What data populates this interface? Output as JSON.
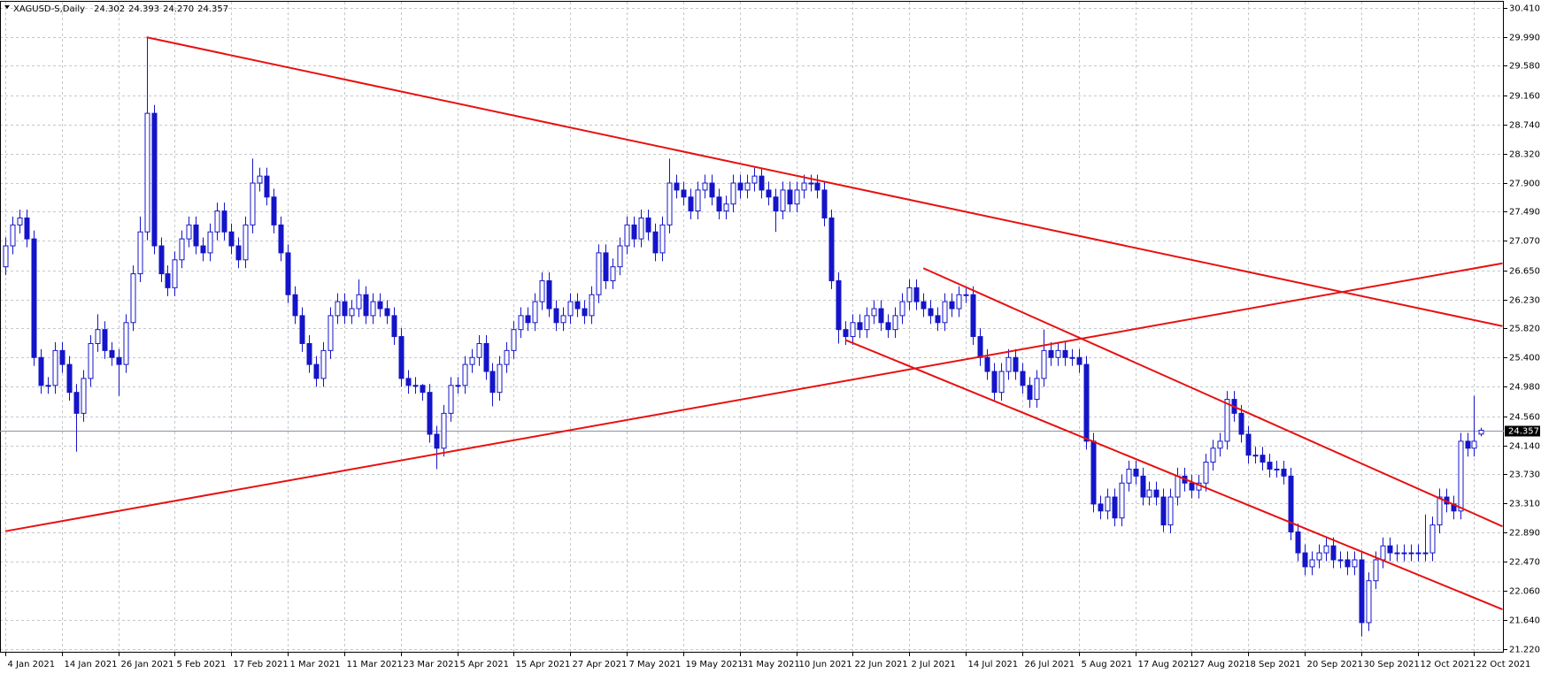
{
  "chart_data": {
    "type": "candlestick",
    "title": "XAGUSD-S,Daily",
    "quote": [
      24.302,
      24.393,
      {
        "value": 24.27,
        "label": "24.270"
      },
      24.357
    ],
    "color": "#1414c8",
    "open": [
      26.7,
      27.0,
      27.3,
      27.4,
      27.1,
      25.4,
      25.0,
      25.0,
      25.5,
      25.3,
      24.9,
      24.6,
      25.1,
      25.6,
      25.8,
      25.5,
      25.4,
      25.3,
      25.9,
      26.6,
      27.2,
      28.9,
      27.0,
      26.6,
      26.4,
      26.8,
      27.1,
      27.3,
      27.0,
      26.9,
      27.2,
      27.5,
      27.2,
      27.0,
      26.8,
      27.3,
      27.9,
      28.0,
      27.7,
      27.3,
      26.9,
      26.3,
      26.0,
      25.6,
      25.3,
      25.1,
      25.5,
      26.0,
      26.2,
      26.0,
      26.1,
      26.3,
      26.0,
      26.2,
      26.1,
      26.0,
      25.7,
      25.1,
      25.0,
      25.0,
      24.9,
      24.3,
      24.1,
      24.6,
      25.0,
      25.0,
      25.3,
      25.4,
      25.6,
      25.2,
      24.9,
      25.3,
      25.5,
      25.8,
      26.0,
      25.9,
      26.2,
      26.5,
      26.1,
      25.9,
      26.0,
      26.2,
      26.1,
      26.0,
      26.3,
      26.9,
      26.5,
      26.7,
      27.0,
      27.3,
      27.1,
      27.4,
      27.2,
      26.9,
      27.3,
      27.9,
      27.8,
      27.7,
      27.5,
      27.8,
      27.9,
      27.7,
      27.5,
      27.6,
      27.9,
      27.8,
      27.9,
      28.0,
      27.8,
      27.7,
      27.5,
      27.8,
      27.6,
      27.8,
      27.9,
      27.9,
      27.8,
      27.4,
      26.5,
      25.8,
      25.7,
      25.9,
      25.8,
      26.0,
      26.1,
      25.9,
      25.8,
      26.0,
      26.2,
      26.4,
      26.2,
      26.1,
      26.0,
      25.9,
      26.2,
      26.1,
      26.3,
      26.3,
      25.7,
      25.4,
      25.2,
      24.9,
      25.2,
      25.4,
      25.2,
      25.0,
      24.8,
      25.1,
      25.5,
      25.4,
      25.5,
      25.4,
      25.4,
      25.3,
      24.2,
      23.3,
      23.2,
      23.4,
      23.1,
      23.6,
      23.8,
      23.7,
      23.4,
      23.5,
      23.4,
      23.0,
      23.4,
      23.7,
      23.6,
      23.5,
      23.6,
      23.9,
      24.1,
      24.2,
      24.8,
      24.6,
      24.3,
      24.0,
      24.0,
      23.9,
      23.8,
      23.8,
      23.7,
      22.9,
      22.6,
      22.4,
      22.5,
      22.6,
      22.7,
      22.5,
      22.5,
      22.4,
      22.5,
      21.6,
      22.2,
      22.5,
      22.7,
      22.6,
      22.6,
      22.6,
      22.6,
      22.6,
      22.6,
      23.0,
      23.4,
      23.3,
      23.2,
      24.2,
      24.1,
      24.302
    ],
    "high": [
      27.12,
      27.42,
      27.52,
      27.52,
      27.22,
      25.52,
      25.12,
      25.62,
      25.62,
      25.42,
      25.02,
      25.22,
      25.72,
      26.02,
      25.92,
      25.62,
      25.52,
      26.02,
      26.72,
      27.42,
      29.99,
      29.02,
      27.12,
      26.72,
      26.92,
      27.22,
      27.42,
      27.42,
      27.12,
      27.32,
      27.62,
      27.62,
      27.32,
      27.12,
      27.42,
      28.25,
      28.12,
      28.12,
      27.82,
      27.42,
      27.02,
      26.42,
      26.12,
      25.72,
      25.42,
      25.62,
      26.12,
      26.32,
      26.32,
      26.22,
      26.52,
      26.42,
      26.32,
      26.32,
      26.22,
      26.12,
      25.82,
      25.22,
      25.12,
      25.02,
      25.02,
      24.42,
      24.72,
      25.12,
      25.12,
      25.42,
      25.52,
      25.72,
      25.72,
      25.32,
      25.42,
      25.62,
      25.92,
      26.12,
      26.12,
      26.32,
      26.62,
      26.62,
      26.22,
      26.12,
      26.32,
      26.32,
      26.22,
      26.42,
      27.02,
      27.02,
      26.82,
      27.12,
      27.42,
      27.42,
      27.52,
      27.52,
      27.32,
      27.42,
      28.25,
      28.02,
      27.92,
      27.82,
      27.92,
      28.02,
      28.02,
      27.82,
      27.72,
      28.02,
      28.02,
      28.02,
      28.12,
      28.12,
      27.92,
      27.82,
      27.92,
      27.92,
      27.92,
      28.02,
      28.02,
      28.02,
      27.92,
      27.52,
      26.62,
      25.92,
      26.02,
      26.02,
      26.12,
      26.22,
      26.22,
      26.02,
      26.12,
      26.32,
      26.52,
      26.52,
      26.32,
      26.22,
      26.12,
      26.32,
      26.32,
      26.42,
      26.42,
      26.42,
      25.82,
      25.52,
      25.32,
      25.32,
      25.52,
      25.52,
      25.32,
      25.12,
      25.22,
      25.8,
      25.62,
      25.62,
      25.62,
      25.52,
      25.52,
      25.42,
      24.32,
      23.42,
      23.52,
      23.52,
      23.72,
      23.92,
      23.92,
      23.82,
      23.62,
      23.62,
      23.52,
      23.52,
      23.82,
      23.82,
      23.72,
      23.72,
      24.02,
      24.22,
      24.32,
      24.92,
      24.92,
      24.72,
      24.42,
      24.12,
      24.12,
      24.02,
      23.92,
      23.92,
      23.82,
      23.02,
      22.72,
      22.62,
      22.72,
      22.82,
      22.82,
      22.62,
      22.62,
      22.62,
      22.62,
      22.32,
      22.62,
      22.82,
      22.82,
      22.72,
      22.72,
      22.72,
      22.72,
      23.15,
      23.12,
      23.52,
      23.52,
      23.42,
      24.32,
      24.32,
      24.85,
      24.393
    ],
    "low": [
      26.58,
      26.88,
      27.18,
      26.98,
      25.28,
      24.88,
      24.88,
      24.88,
      25.18,
      24.78,
      24.05,
      24.48,
      24.98,
      25.48,
      25.38,
      25.28,
      24.85,
      25.18,
      25.78,
      26.48,
      27.08,
      26.88,
      26.48,
      26.28,
      26.28,
      26.68,
      26.98,
      26.88,
      26.78,
      26.78,
      27.08,
      27.08,
      26.88,
      26.68,
      26.68,
      27.18,
      27.78,
      27.58,
      27.18,
      26.78,
      26.18,
      25.88,
      25.48,
      25.18,
      24.98,
      24.98,
      25.38,
      25.88,
      25.88,
      25.88,
      25.98,
      25.88,
      25.88,
      25.98,
      25.88,
      25.58,
      24.98,
      24.88,
      24.88,
      24.78,
      24.18,
      23.8,
      23.98,
      24.48,
      24.88,
      24.88,
      25.18,
      25.28,
      25.08,
      24.7,
      24.78,
      25.18,
      25.38,
      25.68,
      25.78,
      25.78,
      26.08,
      25.98,
      25.78,
      25.78,
      25.88,
      25.98,
      25.88,
      25.88,
      26.18,
      26.38,
      26.38,
      26.58,
      26.88,
      26.98,
      26.98,
      27.08,
      26.78,
      26.78,
      27.18,
      27.68,
      27.58,
      27.38,
      27.38,
      27.68,
      27.58,
      27.38,
      27.38,
      27.48,
      27.68,
      27.68,
      27.78,
      27.68,
      27.58,
      27.2,
      27.38,
      27.48,
      27.48,
      27.68,
      27.78,
      27.68,
      27.28,
      26.38,
      25.6,
      25.58,
      25.58,
      25.68,
      25.68,
      25.88,
      25.78,
      25.68,
      25.68,
      25.88,
      26.08,
      26.08,
      25.98,
      25.88,
      25.78,
      25.78,
      25.98,
      25.98,
      26.18,
      25.58,
      25.28,
      25.08,
      24.78,
      24.78,
      25.08,
      25.08,
      24.88,
      24.68,
      24.68,
      24.98,
      25.28,
      25.28,
      25.28,
      25.28,
      25.18,
      24.08,
      23.18,
      23.08,
      23.08,
      22.98,
      22.98,
      23.48,
      23.58,
      23.28,
      23.28,
      23.28,
      22.9,
      22.88,
      23.28,
      23.48,
      23.38,
      23.38,
      23.48,
      23.78,
      23.98,
      24.08,
      24.48,
      24.18,
      23.88,
      23.88,
      23.78,
      23.68,
      23.68,
      23.58,
      22.78,
      22.48,
      22.28,
      22.28,
      22.38,
      22.48,
      22.38,
      22.38,
      22.28,
      22.28,
      21.4,
      21.48,
      22.08,
      22.38,
      22.48,
      22.48,
      22.48,
      22.48,
      22.48,
      22.48,
      22.48,
      22.88,
      23.18,
      23.08,
      23.08,
      23.98,
      23.98,
      24.27
    ],
    "close": [
      27.0,
      27.3,
      27.4,
      27.1,
      25.4,
      25.0,
      25.0,
      25.5,
      25.3,
      24.9,
      24.6,
      25.1,
      25.6,
      25.8,
      25.5,
      25.4,
      25.3,
      25.9,
      26.6,
      27.2,
      28.9,
      27.0,
      26.6,
      26.4,
      26.8,
      27.1,
      27.3,
      27.0,
      26.9,
      27.2,
      27.5,
      27.2,
      27.0,
      26.8,
      27.3,
      27.9,
      28.0,
      27.7,
      27.3,
      26.9,
      26.3,
      26.0,
      25.6,
      25.3,
      25.1,
      25.5,
      26.0,
      26.2,
      26.0,
      26.1,
      26.3,
      26.0,
      26.2,
      26.1,
      26.0,
      25.7,
      25.1,
      25.0,
      25.0,
      24.9,
      24.3,
      24.1,
      24.6,
      25.0,
      25.0,
      25.3,
      25.4,
      25.6,
      25.2,
      24.9,
      25.3,
      25.5,
      25.8,
      26.0,
      25.9,
      26.2,
      26.5,
      26.1,
      25.9,
      26.0,
      26.2,
      26.1,
      26.0,
      26.3,
      26.9,
      26.5,
      26.7,
      27.0,
      27.3,
      27.1,
      27.4,
      27.2,
      26.9,
      27.3,
      27.9,
      27.8,
      27.7,
      27.5,
      27.8,
      27.9,
      27.7,
      27.5,
      27.6,
      27.9,
      27.8,
      27.9,
      28.0,
      27.8,
      27.7,
      27.5,
      27.8,
      27.6,
      27.8,
      27.9,
      27.9,
      27.8,
      27.4,
      26.5,
      25.8,
      25.7,
      25.9,
      25.8,
      26.0,
      26.1,
      25.9,
      25.8,
      26.0,
      26.2,
      26.4,
      26.2,
      26.1,
      26.0,
      25.9,
      26.2,
      26.1,
      26.3,
      26.3,
      25.7,
      25.4,
      25.2,
      24.9,
      25.2,
      25.4,
      25.2,
      25.0,
      24.8,
      25.1,
      25.5,
      25.4,
      25.5,
      25.4,
      25.4,
      25.3,
      24.2,
      23.3,
      23.2,
      23.4,
      23.1,
      23.6,
      23.8,
      23.7,
      23.4,
      23.5,
      23.4,
      23.0,
      23.4,
      23.7,
      23.6,
      23.5,
      23.6,
      23.9,
      24.1,
      24.2,
      24.8,
      24.6,
      24.3,
      24.0,
      24.0,
      23.9,
      23.8,
      23.8,
      23.7,
      22.9,
      22.6,
      22.4,
      22.5,
      22.6,
      22.7,
      22.5,
      22.5,
      22.4,
      22.5,
      21.6,
      22.2,
      22.5,
      22.7,
      22.6,
      22.6,
      22.6,
      22.6,
      22.6,
      22.6,
      23.0,
      23.4,
      23.3,
      23.2,
      24.2,
      24.1,
      24.2,
      24.357
    ],
    "trendlines": [
      {
        "color": "#e81010",
        "x": [
          20,
          212
        ],
        "y": [
          29.99,
          25.85
        ]
      },
      {
        "color": "#e81010",
        "x": [
          0,
          212
        ],
        "y": [
          22.91,
          26.75
        ]
      },
      {
        "color": "#e81010",
        "x": [
          130,
          212
        ],
        "y": [
          26.68,
          22.98
        ]
      },
      {
        "color": "#e81010",
        "x": [
          119,
          212
        ],
        "y": [
          25.65,
          21.79
        ]
      }
    ],
    "xlim": [
      -0.75,
      212.2
    ],
    "ylim": [
      21.22,
      30.41
    ],
    "grid": true,
    "yticks": [
      {
        "value": 30.41,
        "label": "30.410"
      },
      {
        "value": 29.99,
        "label": "29.990"
      },
      {
        "value": 29.58,
        "label": "29.580"
      },
      {
        "value": 29.16,
        "label": "29.160"
      },
      {
        "value": 28.74,
        "label": "28.740"
      },
      {
        "value": 28.32,
        "label": "28.320"
      },
      {
        "value": 27.9,
        "label": "27.900"
      },
      {
        "value": 27.49,
        "label": "27.490"
      },
      {
        "value": 27.07,
        "label": "27.070"
      },
      {
        "value": 26.65,
        "label": "26.650"
      },
      {
        "value": 26.23,
        "label": "26.230"
      },
      {
        "value": 25.82,
        "label": "25.820"
      },
      {
        "value": 25.4,
        "label": "25.400"
      },
      {
        "value": 24.98,
        "label": "24.980"
      },
      {
        "value": 24.56,
        "label": "24.560"
      },
      {
        "value": 24.14,
        "label": "24.140"
      },
      {
        "value": 23.73,
        "label": "23.730"
      },
      {
        "value": 23.31,
        "label": "23.310"
      },
      {
        "value": 22.89,
        "label": "22.890"
      },
      {
        "value": 22.47,
        "label": "22.470"
      },
      {
        "value": 22.06,
        "label": "22.060"
      },
      {
        "value": 21.64,
        "label": "21.640"
      },
      {
        "value": 21.22,
        "label": "21.220"
      }
    ],
    "xticks": [
      {
        "value": 0,
        "label": "4 Jan 2021"
      },
      {
        "value": 8,
        "label": "14 Jan 2021"
      },
      {
        "value": 16,
        "label": "26 Jan 2021"
      },
      {
        "value": 24,
        "label": "5 Feb 2021"
      },
      {
        "value": 32,
        "label": "17 Feb 2021"
      },
      {
        "value": 40,
        "label": "1 Mar 2021"
      },
      {
        "value": 48,
        "label": "11 Mar 2021"
      },
      {
        "value": 56,
        "label": "23 Mar 2021"
      },
      {
        "value": 64,
        "label": "5 Apr 2021"
      },
      {
        "value": 72,
        "label": "15 Apr 2021"
      },
      {
        "value": 80,
        "label": "27 Apr 2021"
      },
      {
        "value": 88,
        "label": "7 May 2021"
      },
      {
        "value": 96,
        "label": "19 May 2021"
      },
      {
        "value": 104,
        "label": "31 May 2021"
      },
      {
        "value": 112,
        "label": "10 Jun 2021"
      },
      {
        "value": 120,
        "label": "22 Jun 2021"
      },
      {
        "value": 128,
        "label": "2 Jul 2021"
      },
      {
        "value": 136,
        "label": "14 Jul 2021"
      },
      {
        "value": 144,
        "label": "26 Jul 2021"
      },
      {
        "value": 152,
        "label": "5 Aug 2021"
      },
      {
        "value": 160,
        "label": "17 Aug 2021"
      },
      {
        "value": 168,
        "label": "27 Aug 2021"
      },
      {
        "value": 176,
        "label": "8 Sep 2021"
      },
      {
        "value": 184,
        "label": "20 Sep 2021"
      },
      {
        "value": 192,
        "label": "30 Sep 2021"
      },
      {
        "value": 200,
        "label": "12 Oct 2021"
      },
      {
        "value": 208,
        "label": "22 Oct 2021"
      }
    ]
  }
}
